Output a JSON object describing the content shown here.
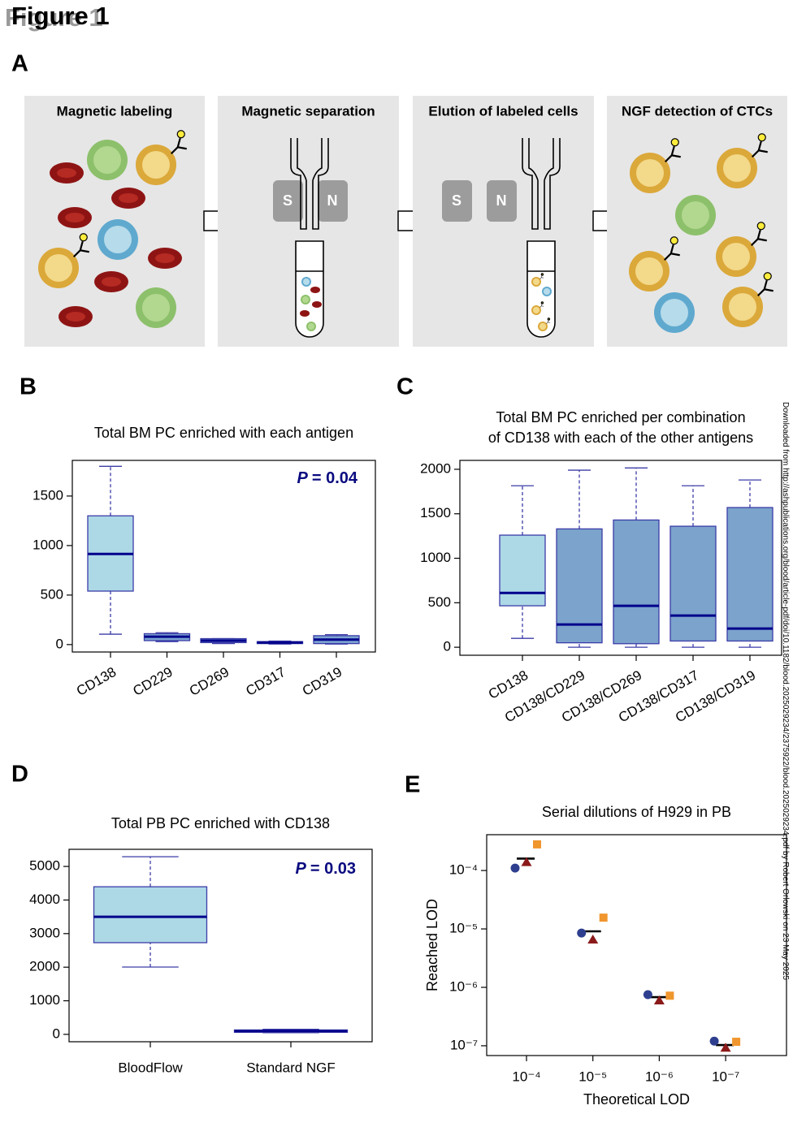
{
  "figure_title": "Figure 1",
  "watermark": "Downloaded from http://ashpublications.org/blood/article-pdf/doi/10.1182/blood.2025029234/2375922/blood.2025029234.pdf by Robert Orlowski on 23 May 2025",
  "diagram": {
    "panel": "A",
    "steps": [
      "Magnetic labeling",
      "Magnetic separation",
      "Elution of labeled cells",
      "NGF detection of CTCs"
    ],
    "magnet_labels": [
      "S",
      "N"
    ]
  },
  "chart_data": [
    {
      "panel": "B",
      "type": "boxplot",
      "title": [
        "Total BM PC enriched with each antigen"
      ],
      "categories": [
        "CD138",
        "CD229",
        "CD269",
        "CD317",
        "CD319"
      ],
      "boxes": [
        {
          "min": 105,
          "q1": 540,
          "median": 915,
          "q3": 1300,
          "max": 1800
        },
        {
          "min": 30,
          "q1": 40,
          "median": 80,
          "q3": 110,
          "max": 120
        },
        {
          "min": 10,
          "q1": 20,
          "median": 40,
          "q3": 60,
          "max": 60
        },
        {
          "min": 5,
          "q1": 10,
          "median": 20,
          "q3": 30,
          "max": 35
        },
        {
          "min": 5,
          "q1": 10,
          "median": 50,
          "q3": 90,
          "max": 100
        }
      ],
      "colors": [
        "#add8e6",
        "#7ba3d0",
        "#7ba3d0",
        "#7ba3d0",
        "#7ba3d0"
      ],
      "border_color": "#3c3ca8",
      "median_color": "#00008b",
      "ylim": [
        -75,
        1860
      ],
      "yticks": [
        0,
        500,
        1000,
        1500
      ],
      "annotation": {
        "italic": "P",
        "text": "= 0.04",
        "color": "#0a0a80"
      }
    },
    {
      "panel": "C",
      "type": "boxplot",
      "title": [
        "Total BM PC enriched per combination",
        "of CD138 with each of the other antigens"
      ],
      "categories": [
        "CD138",
        "CD138/CD229",
        "CD138/CD269",
        "CD138/CD317",
        "CD138/CD319"
      ],
      "boxes": [
        {
          "min": 100,
          "q1": 466,
          "median": 610,
          "q3": 1260,
          "max": 1815
        },
        {
          "min": 0,
          "q1": 50,
          "median": 256,
          "q3": 1330,
          "max": 1990
        },
        {
          "min": 0,
          "q1": 40,
          "median": 466,
          "q3": 1430,
          "max": 2015
        },
        {
          "min": 0,
          "q1": 70,
          "median": 356,
          "q3": 1360,
          "max": 1815
        },
        {
          "min": 0,
          "q1": 70,
          "median": 210,
          "q3": 1570,
          "max": 1880
        }
      ],
      "colors": [
        "#add8e6",
        "#7ba3cc",
        "#7ba3cc",
        "#7ba3cc",
        "#7ba3cc"
      ],
      "border_color": "#3c3ca8",
      "median_color": "#00008b",
      "ylim": [
        -90,
        2100
      ],
      "yticks": [
        0,
        500,
        1000,
        1500,
        2000
      ]
    },
    {
      "panel": "D",
      "type": "boxplot",
      "title": [
        "Total PB PC enriched with CD138"
      ],
      "categories": [
        "BloodFlow",
        "Standard NGF"
      ],
      "boxes": [
        {
          "min": 2005,
          "q1": 2730,
          "median": 3500,
          "q3": 4395,
          "max": 5290
        },
        {
          "min": 50,
          "q1": 60,
          "median": 100,
          "q3": 130,
          "max": 150
        }
      ],
      "colors": [
        "#add8e6",
        "#7ba3d0"
      ],
      "border_color": "#3c3ca8",
      "median_color": "#00008b",
      "ylim": [
        -220,
        5510
      ],
      "yticks": [
        0,
        1000,
        2000,
        3000,
        4000,
        5000
      ],
      "annotation": {
        "italic": "P",
        "text": "= 0.03",
        "color": "#0a0a80"
      }
    },
    {
      "panel": "E",
      "type": "scatter",
      "title": [
        "Serial dilutions of H929 in PB"
      ],
      "x_label": "Theoretical LOD",
      "y_label": "Reached LOD",
      "y_log": true,
      "categories": [
        "10⁻⁴",
        "10⁻⁵",
        "10⁻⁶",
        "10⁻⁷"
      ],
      "series": [
        {
          "marker": "line",
          "color": "#000000",
          "values": [
            0.00016,
            9.1e-06,
            6.8e-07,
            1.03e-07
          ]
        },
        {
          "marker": "circle",
          "color": "#2e3f8f",
          "values": [
            0.00011,
            8.5e-06,
            7.5e-07,
            1.2e-07
          ]
        },
        {
          "marker": "triangle",
          "color": "#8b1a1a",
          "values": [
            0.00014,
            6.6e-06,
            6e-07,
            9.3e-08
          ]
        },
        {
          "marker": "square",
          "color": "#f0962e",
          "values": [
            0.00028,
            1.56e-05,
            7.2e-07,
            1.17e-07
          ]
        }
      ],
      "ylim": [
        6.8e-08,
        0.00041
      ],
      "yticks": [
        {
          "value": 1e-07,
          "label": "10⁻⁷"
        },
        {
          "value": 1e-06,
          "label": "10⁻⁶"
        },
        {
          "value": 1e-05,
          "label": "10⁻⁵"
        },
        {
          "value": 0.0001,
          "label": "10⁻⁴"
        }
      ]
    }
  ]
}
